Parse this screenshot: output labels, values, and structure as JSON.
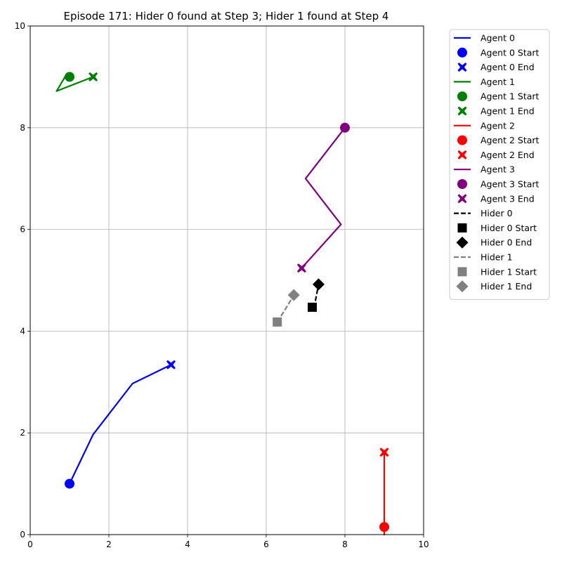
{
  "chart_data": {
    "type": "line",
    "title": "Episode 171: Hider 0 found at Step 3; Hider 1 found at Step 4",
    "xlabel": "",
    "ylabel": "",
    "xlim": [
      0,
      10
    ],
    "ylim": [
      0,
      10
    ],
    "xticks": [
      "0",
      "2",
      "4",
      "6",
      "8",
      "10"
    ],
    "yticks": [
      "0",
      "2",
      "4",
      "6",
      "8",
      "10"
    ],
    "grid": true,
    "legend_placement": "outside-top-right",
    "series": [
      {
        "name": "Agent 0",
        "color": "#0000ff",
        "dash": "solid",
        "points": [
          [
            1.0,
            1.0
          ],
          [
            1.6,
            1.97
          ],
          [
            2.6,
            2.97
          ],
          [
            3.58,
            3.34
          ]
        ],
        "start_marker": "circle",
        "end_marker": "x",
        "start_label": "Agent 0 Start",
        "end_label": "Agent 0 End"
      },
      {
        "name": "Agent 1",
        "color": "#008000",
        "dash": "solid",
        "points": [
          [
            1.0,
            9.0
          ],
          [
            0.9,
            9.02
          ],
          [
            0.67,
            8.72
          ],
          [
            1.6,
            9.0
          ]
        ],
        "start_marker": "circle",
        "end_marker": "x",
        "start_label": "Agent 1 Start",
        "end_label": "Agent 1 End"
      },
      {
        "name": "Agent 2",
        "color": "#ff0000",
        "dash": "solid",
        "points": [
          [
            9.0,
            0.15
          ],
          [
            9.0,
            0.0
          ],
          [
            9.0,
            1.62
          ]
        ],
        "start_marker": "circle",
        "end_marker": "x",
        "start_label": "Agent 2 Start",
        "end_label": "Agent 2 End"
      },
      {
        "name": "Agent 3",
        "color": "#800080",
        "dash": "solid",
        "points": [
          [
            8.0,
            8.0
          ],
          [
            7.0,
            7.0
          ],
          [
            7.9,
            6.1
          ],
          [
            6.9,
            5.24
          ]
        ],
        "start_marker": "circle",
        "end_marker": "x",
        "start_label": "Agent 3 Start",
        "end_label": "Agent 3 End"
      },
      {
        "name": "Hider 0",
        "color": "#000000",
        "dash": "dashed",
        "points": [
          [
            7.17,
            4.47
          ],
          [
            7.25,
            4.6
          ],
          [
            7.33,
            4.92
          ]
        ],
        "start_marker": "square",
        "end_marker": "diamond",
        "start_label": "Hider 0 Start",
        "end_label": "Hider 0 End"
      },
      {
        "name": "Hider 1",
        "color": "#808080",
        "dash": "dashed",
        "points": [
          [
            6.28,
            4.18
          ],
          [
            6.5,
            4.45
          ],
          [
            6.7,
            4.71
          ]
        ],
        "start_marker": "square",
        "end_marker": "diamond",
        "start_label": "Hider 1 Start",
        "end_label": "Hider 1 End"
      }
    ]
  }
}
